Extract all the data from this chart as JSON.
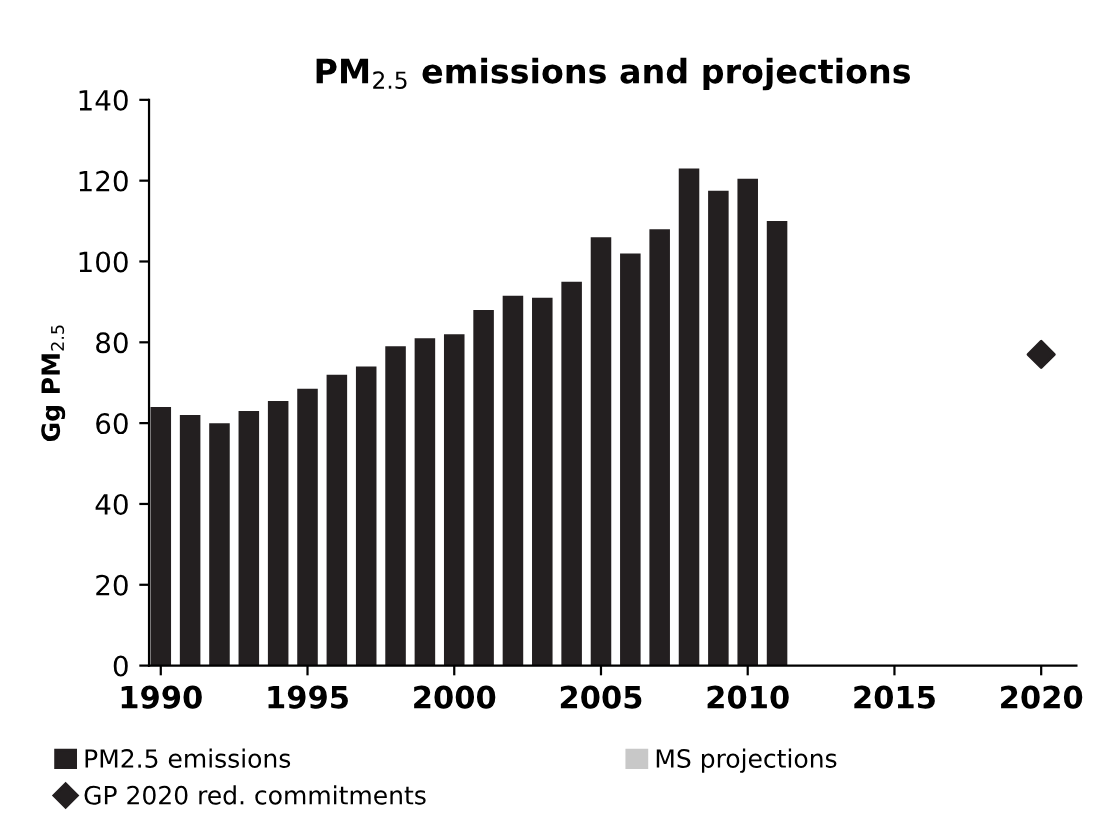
{
  "chart_data": {
    "type": "bar",
    "title": "PM$_{2.5}$ emissions and projections",
    "ylabel": "Gg PM$_{2.5}$",
    "xlim": [
      1989.6,
      2021.2
    ],
    "xticks": [
      1990,
      1995,
      2000,
      2005,
      2010,
      2015,
      2020
    ],
    "ylim": [
      0,
      140
    ],
    "yticks": [
      0,
      20,
      40,
      60,
      80,
      100,
      120,
      140
    ],
    "grid": false,
    "legend": "bottom",
    "series": [
      {
        "name": "PM2.5 emissions",
        "color": "#231f20",
        "x": [
          1990,
          1991,
          1992,
          1993,
          1994,
          1995,
          1996,
          1997,
          1998,
          1999,
          2000,
          2001,
          2002,
          2003,
          2004,
          2005,
          2006,
          2007,
          2008,
          2009,
          2010,
          2011
        ],
        "values": [
          64,
          62,
          60,
          63,
          65.5,
          68.5,
          72,
          74,
          79,
          81,
          82,
          88,
          91.5,
          91,
          95,
          106,
          102,
          108,
          123,
          117.5,
          120.5,
          110
        ]
      },
      {
        "name": "MS projections",
        "color": "#c8c8c8"
      },
      {
        "name": "GP 2020 red. commitments",
        "type": "scatter",
        "marker": "diamond",
        "color": "#231f20",
        "x": [
          2020
        ],
        "values": [
          77
        ]
      }
    ]
  }
}
